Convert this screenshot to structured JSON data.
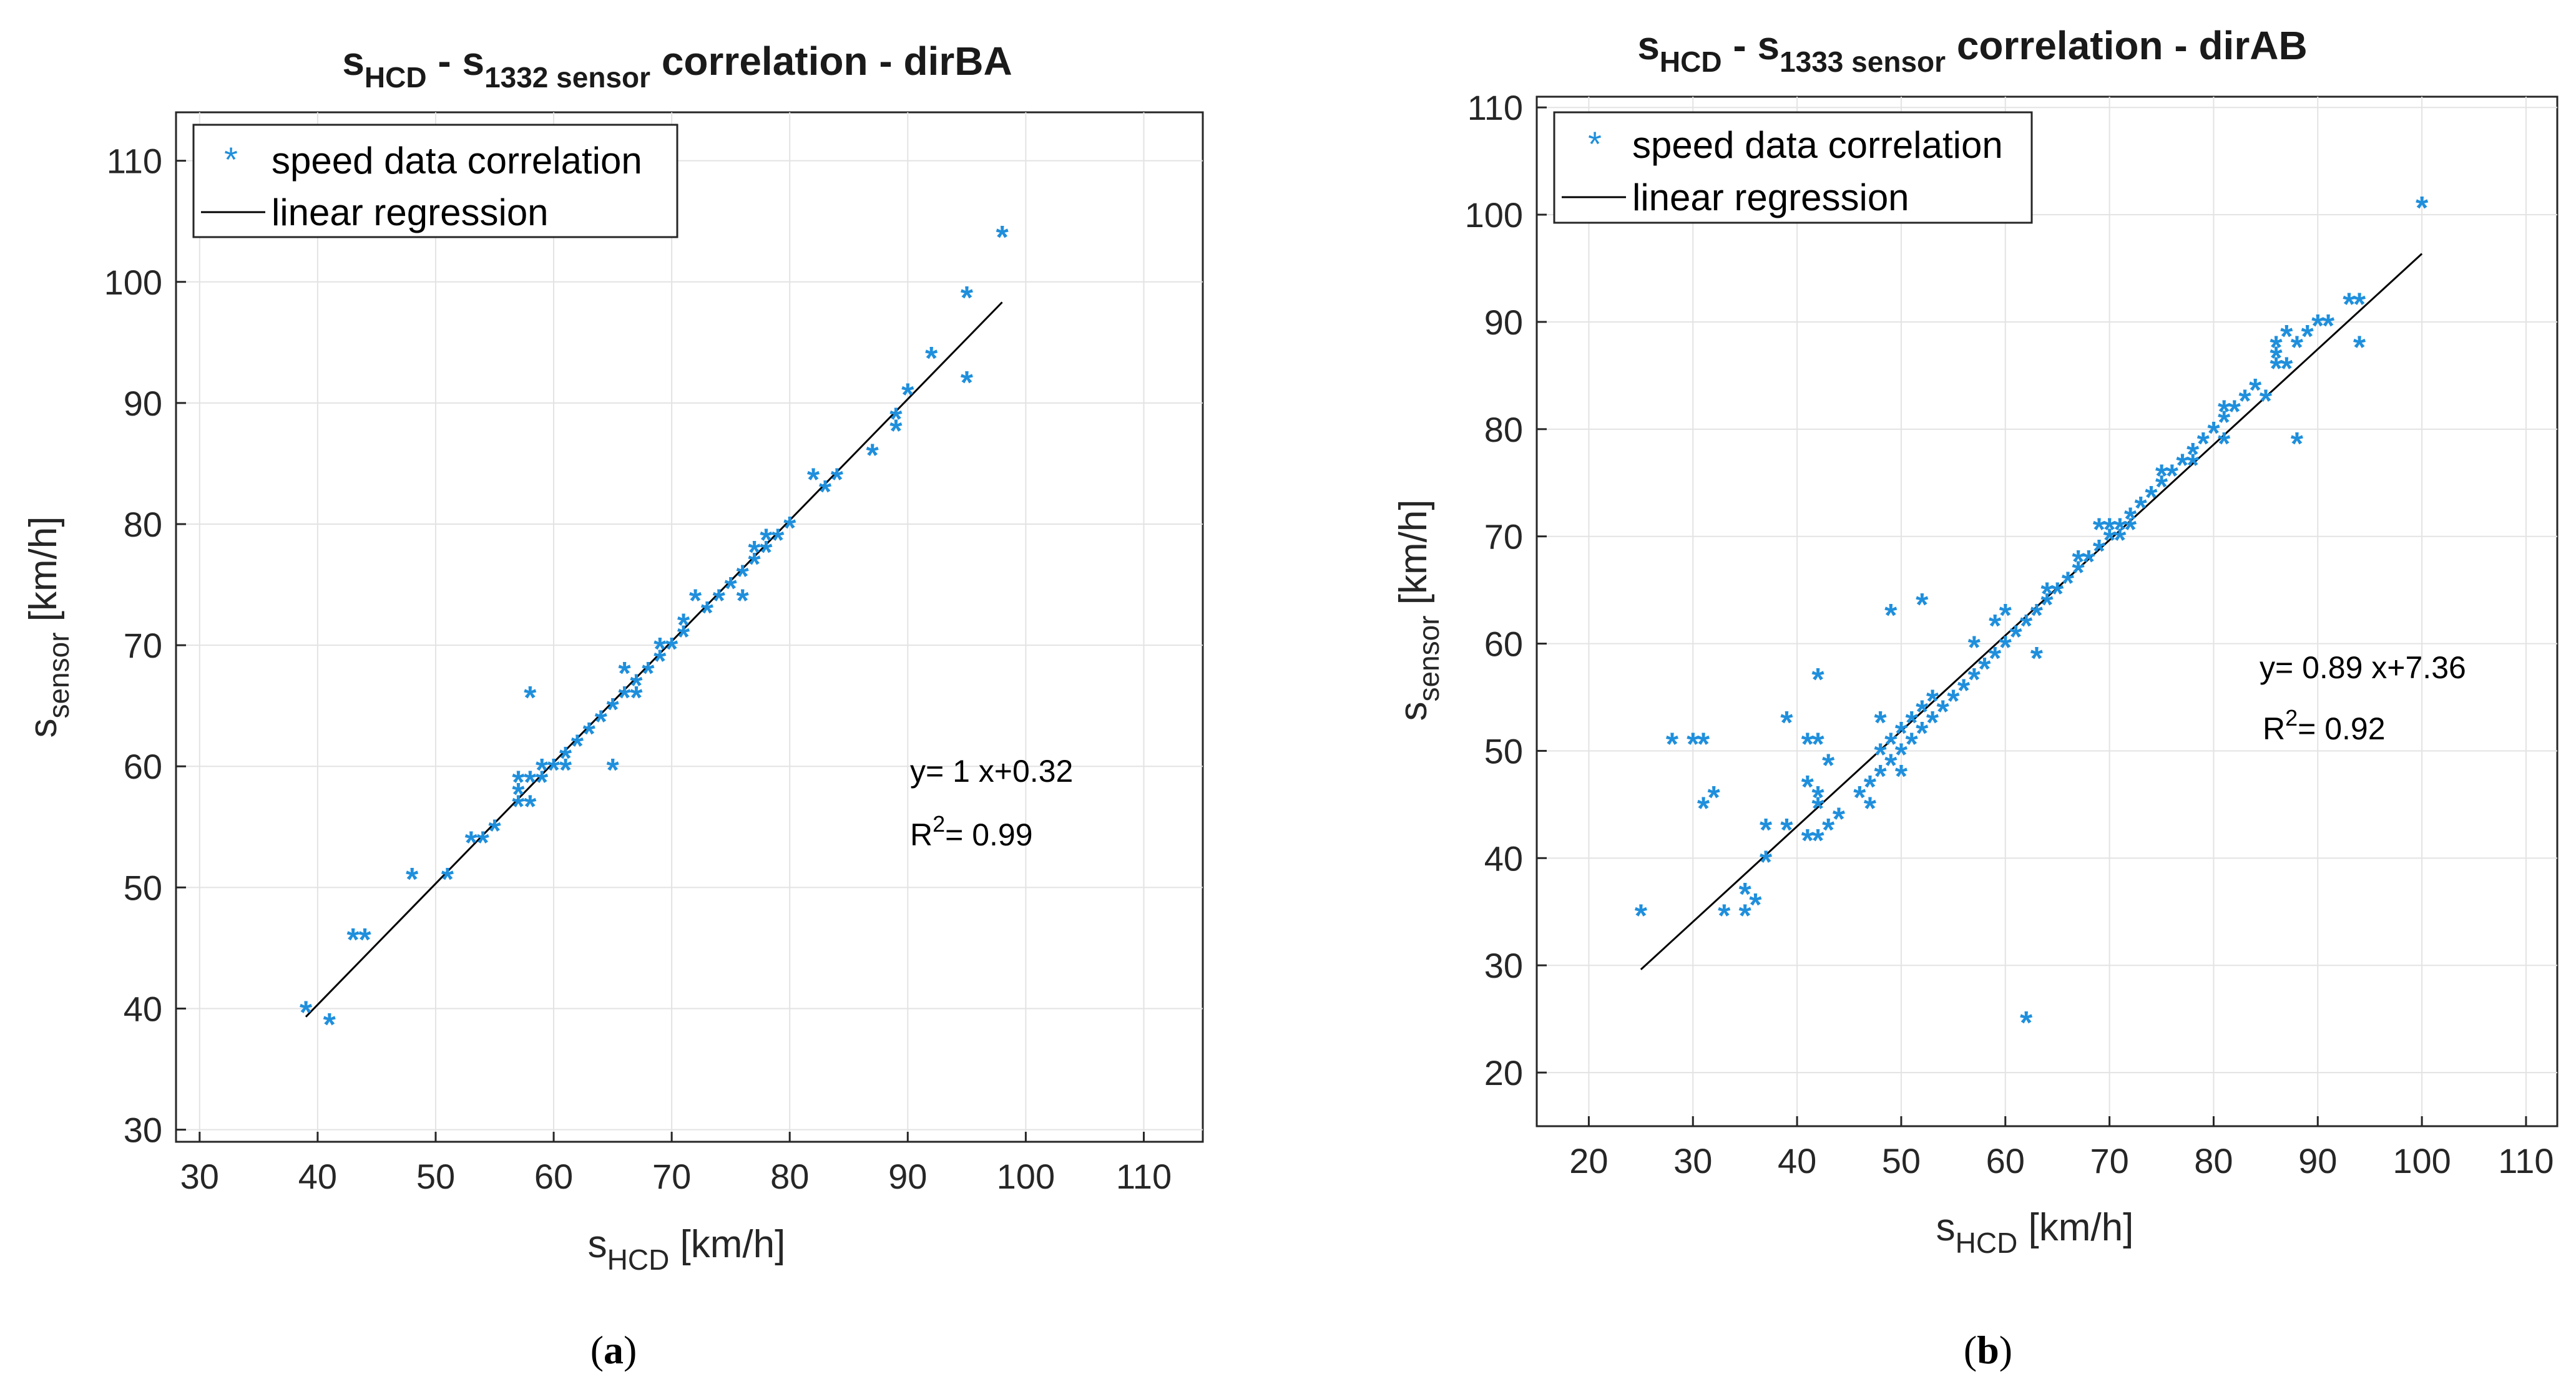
{
  "chart_data": [
    {
      "type": "scatter",
      "panel_label": "a",
      "title": {
        "base1": "s",
        "sub1": "HCD",
        "sep": " - ",
        "base2": "s",
        "sub2": "1332 sensor",
        "rest": " correlation - dirBA"
      },
      "xlabel": {
        "base": "s",
        "sub": "HCD",
        "rest": " [km/h]"
      },
      "ylabel": {
        "base": "s",
        "sub": "sensor",
        "rest": " [km/h]"
      },
      "xlim": [
        28,
        115
      ],
      "ylim": [
        29,
        114
      ],
      "xticks": [
        30,
        40,
        50,
        60,
        70,
        80,
        90,
        100,
        110
      ],
      "yticks": [
        30,
        40,
        50,
        60,
        70,
        80,
        90,
        100,
        110
      ],
      "grid": true,
      "legend_position": "top-left",
      "legend": {
        "scatter": "speed data correlation",
        "line": "linear regression"
      },
      "annotation": {
        "equation": "y= 1 x+0.32",
        "r2_base": "R",
        "r2_sup": "2",
        "r2_rest": "= 0.99"
      },
      "regression": {
        "slope": 1.0,
        "intercept": 0.32,
        "x_range": [
          39,
          98
        ]
      },
      "marker_color": "#1f8fdc",
      "points": [
        [
          39,
          40
        ],
        [
          41,
          39
        ],
        [
          43,
          46
        ],
        [
          44,
          46
        ],
        [
          48,
          51
        ],
        [
          51,
          51
        ],
        [
          53,
          54
        ],
        [
          54,
          54
        ],
        [
          55,
          55
        ],
        [
          57,
          57
        ],
        [
          57,
          58
        ],
        [
          57,
          59
        ],
        [
          58,
          57
        ],
        [
          58,
          59
        ],
        [
          58,
          66
        ],
        [
          59,
          59
        ],
        [
          59,
          60
        ],
        [
          60,
          60
        ],
        [
          61,
          60
        ],
        [
          61,
          61
        ],
        [
          62,
          62
        ],
        [
          63,
          63
        ],
        [
          64,
          64
        ],
        [
          65,
          60
        ],
        [
          65,
          65
        ],
        [
          66,
          66
        ],
        [
          66,
          68
        ],
        [
          67,
          66
        ],
        [
          67,
          67
        ],
        [
          68,
          68
        ],
        [
          69,
          69
        ],
        [
          69,
          70
        ],
        [
          70,
          70
        ],
        [
          71,
          71
        ],
        [
          71,
          72
        ],
        [
          72,
          74
        ],
        [
          73,
          73
        ],
        [
          74,
          74
        ],
        [
          75,
          75
        ],
        [
          76,
          74
        ],
        [
          76,
          76
        ],
        [
          77,
          77
        ],
        [
          77,
          78
        ],
        [
          78,
          78
        ],
        [
          78,
          79
        ],
        [
          79,
          79
        ],
        [
          80,
          80
        ],
        [
          82,
          84
        ],
        [
          83,
          83
        ],
        [
          84,
          84
        ],
        [
          87,
          86
        ],
        [
          89,
          88
        ],
        [
          89,
          89
        ],
        [
          90,
          91
        ],
        [
          92,
          94
        ],
        [
          95,
          92
        ],
        [
          95,
          99
        ],
        [
          98,
          104
        ]
      ]
    },
    {
      "type": "scatter",
      "panel_label": "b",
      "title": {
        "base1": "s",
        "sub1": "HCD",
        "sep": " - ",
        "base2": "s",
        "sub2": "1333 sensor",
        "rest": " correlation - dirAB"
      },
      "xlabel": {
        "base": "s",
        "sub": "HCD",
        "rest": " [km/h]"
      },
      "ylabel": {
        "base": "s",
        "sub": "sensor",
        "rest": " [km/h]"
      },
      "xlim": [
        15,
        113
      ],
      "ylim": [
        15,
        111
      ],
      "xticks": [
        20,
        30,
        40,
        50,
        60,
        70,
        80,
        90,
        100,
        110
      ],
      "yticks": [
        20,
        30,
        40,
        50,
        60,
        70,
        80,
        90,
        100,
        110
      ],
      "grid": true,
      "legend_position": "top-left",
      "legend": {
        "scatter": "speed data correlation",
        "line": "linear regression"
      },
      "annotation": {
        "equation": "y= 0.89 x+7.36",
        "r2_base": "R",
        "r2_sup": "2",
        "r2_rest": "= 0.92"
      },
      "regression": {
        "slope": 0.89,
        "intercept": 7.36,
        "x_range": [
          25,
          100
        ]
      },
      "marker_color": "#1f8fdc",
      "points": [
        [
          25,
          35
        ],
        [
          28,
          51
        ],
        [
          30,
          51
        ],
        [
          31,
          51
        ],
        [
          31,
          45
        ],
        [
          32,
          46
        ],
        [
          33,
          35
        ],
        [
          35,
          35
        ],
        [
          35,
          37
        ],
        [
          36,
          36
        ],
        [
          37,
          40
        ],
        [
          37,
          43
        ],
        [
          39,
          53
        ],
        [
          39,
          43
        ],
        [
          41,
          47
        ],
        [
          41,
          51
        ],
        [
          41,
          42
        ],
        [
          42,
          51
        ],
        [
          42,
          57
        ],
        [
          42,
          46
        ],
        [
          42,
          45
        ],
        [
          42,
          42
        ],
        [
          43,
          43
        ],
        [
          43,
          49
        ],
        [
          44,
          44
        ],
        [
          46,
          46
        ],
        [
          47,
          45
        ],
        [
          47,
          47
        ],
        [
          48,
          48
        ],
        [
          48,
          53
        ],
        [
          48,
          50
        ],
        [
          49,
          49
        ],
        [
          49,
          51
        ],
        [
          49,
          63
        ],
        [
          50,
          48
        ],
        [
          50,
          50
        ],
        [
          50,
          52
        ],
        [
          51,
          51
        ],
        [
          51,
          53
        ],
        [
          52,
          52
        ],
        [
          52,
          64
        ],
        [
          52,
          54
        ],
        [
          53,
          53
        ],
        [
          53,
          55
        ],
        [
          54,
          54
        ],
        [
          55,
          55
        ],
        [
          56,
          56
        ],
        [
          57,
          57
        ],
        [
          57,
          60
        ],
        [
          58,
          58
        ],
        [
          59,
          59
        ],
        [
          59,
          62
        ],
        [
          60,
          60
        ],
        [
          60,
          63
        ],
        [
          61,
          61
        ],
        [
          62,
          25
        ],
        [
          62,
          62
        ],
        [
          63,
          59
        ],
        [
          63,
          63
        ],
        [
          64,
          64
        ],
        [
          64,
          65
        ],
        [
          65,
          65
        ],
        [
          66,
          66
        ],
        [
          67,
          67
        ],
        [
          67,
          68
        ],
        [
          68,
          68
        ],
        [
          69,
          69
        ],
        [
          69,
          71
        ],
        [
          70,
          70
        ],
        [
          70,
          71
        ],
        [
          71,
          71
        ],
        [
          71,
          70
        ],
        [
          72,
          72
        ],
        [
          72,
          71
        ],
        [
          73,
          73
        ],
        [
          74,
          74
        ],
        [
          75,
          75
        ],
        [
          75,
          76
        ],
        [
          76,
          76
        ],
        [
          77,
          77
        ],
        [
          78,
          78
        ],
        [
          78,
          77
        ],
        [
          79,
          79
        ],
        [
          80,
          80
        ],
        [
          81,
          81
        ],
        [
          81,
          82
        ],
        [
          81,
          79
        ],
        [
          82,
          82
        ],
        [
          83,
          83
        ],
        [
          84,
          84
        ],
        [
          85,
          83
        ],
        [
          86,
          86
        ],
        [
          86,
          87
        ],
        [
          86,
          88
        ],
        [
          87,
          89
        ],
        [
          87,
          86
        ],
        [
          88,
          88
        ],
        [
          88,
          79
        ],
        [
          89,
          89
        ],
        [
          90,
          90
        ],
        [
          91,
          90
        ],
        [
          93,
          92
        ],
        [
          94,
          92
        ],
        [
          94,
          88
        ],
        [
          100,
          101
        ]
      ]
    }
  ]
}
